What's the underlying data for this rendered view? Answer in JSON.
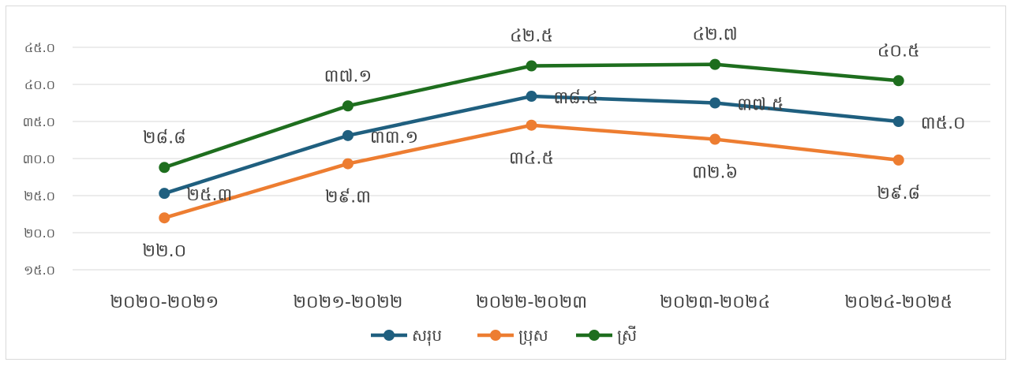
{
  "chart_data": {
    "type": "line",
    "title": "",
    "xlabel": "",
    "ylabel": "",
    "categories": [
      "២០២០-២០២១",
      "២០២១-២០២២",
      "២០២២-២០២៣",
      "២០២៣-២០២៤",
      "២០២៤-២០២៥"
    ],
    "ylim": [
      15,
      45
    ],
    "yticks": [
      15,
      20,
      25,
      30,
      35,
      40,
      45
    ],
    "ytick_labels": [
      "១៥.០",
      "២០.០",
      "២៥.០",
      "៣០.០",
      "៣៥.០",
      "៤០.០",
      "៤៥.០"
    ],
    "grid": "horizontal",
    "legend_position": "bottom",
    "series": [
      {
        "name": "សរុប",
        "color": "#1f5f7f",
        "values": [
          25.3,
          33.1,
          38.4,
          37.5,
          35.0
        ],
        "labels": [
          "២៥.៣",
          "៣៣.១",
          "៣៨.៤",
          "៣៧.៥",
          "៣៥.០"
        ]
      },
      {
        "name": "ប្រុស",
        "color": "#ed7d31",
        "values": [
          22.0,
          29.3,
          34.5,
          32.6,
          29.8
        ],
        "labels": [
          "២២.០",
          "២៩.៣",
          "៣៤.៥",
          "៣២.៦",
          "២៩.៨"
        ]
      },
      {
        "name": "ស្រី",
        "color": "#1e6e1e",
        "values": [
          28.8,
          37.1,
          42.5,
          42.7,
          40.5
        ],
        "labels": [
          "២៨.៨",
          "៣៧.១",
          "៤២.៥",
          "៤២.៧",
          "៤០.៥"
        ]
      }
    ]
  }
}
